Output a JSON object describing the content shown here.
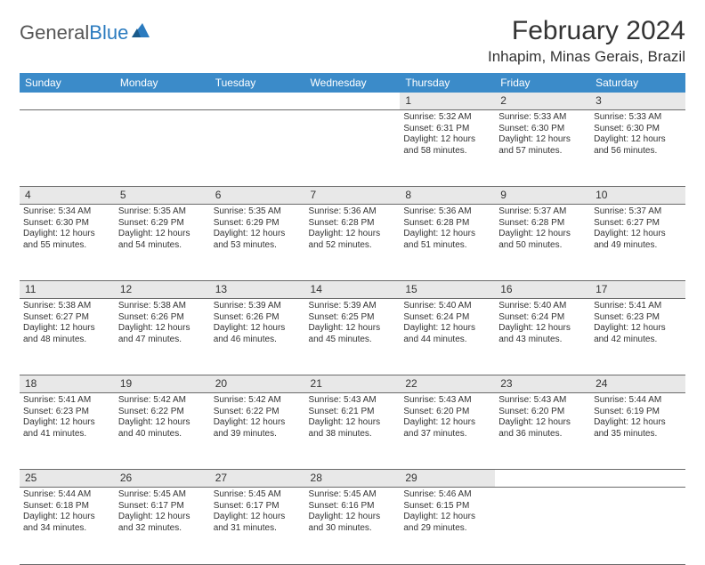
{
  "logo": {
    "text1": "General",
    "text2": "Blue"
  },
  "title": "February 2024",
  "location": "Inhapim, Minas Gerais, Brazil",
  "colors": {
    "header_bg": "#3b8bc9",
    "header_text": "#ffffff",
    "daynum_bg": "#e8e8e8",
    "border": "#6a6a6a",
    "text": "#333333",
    "logo_gray": "#555555",
    "logo_blue": "#2b7bbf",
    "page_bg": "#ffffff"
  },
  "day_headers": [
    "Sunday",
    "Monday",
    "Tuesday",
    "Wednesday",
    "Thursday",
    "Friday",
    "Saturday"
  ],
  "weeks": [
    [
      null,
      null,
      null,
      null,
      {
        "n": "1",
        "sr": "Sunrise: 5:32 AM",
        "ss": "Sunset: 6:31 PM",
        "dl": "Daylight: 12 hours and 58 minutes."
      },
      {
        "n": "2",
        "sr": "Sunrise: 5:33 AM",
        "ss": "Sunset: 6:30 PM",
        "dl": "Daylight: 12 hours and 57 minutes."
      },
      {
        "n": "3",
        "sr": "Sunrise: 5:33 AM",
        "ss": "Sunset: 6:30 PM",
        "dl": "Daylight: 12 hours and 56 minutes."
      }
    ],
    [
      {
        "n": "4",
        "sr": "Sunrise: 5:34 AM",
        "ss": "Sunset: 6:30 PM",
        "dl": "Daylight: 12 hours and 55 minutes."
      },
      {
        "n": "5",
        "sr": "Sunrise: 5:35 AM",
        "ss": "Sunset: 6:29 PM",
        "dl": "Daylight: 12 hours and 54 minutes."
      },
      {
        "n": "6",
        "sr": "Sunrise: 5:35 AM",
        "ss": "Sunset: 6:29 PM",
        "dl": "Daylight: 12 hours and 53 minutes."
      },
      {
        "n": "7",
        "sr": "Sunrise: 5:36 AM",
        "ss": "Sunset: 6:28 PM",
        "dl": "Daylight: 12 hours and 52 minutes."
      },
      {
        "n": "8",
        "sr": "Sunrise: 5:36 AM",
        "ss": "Sunset: 6:28 PM",
        "dl": "Daylight: 12 hours and 51 minutes."
      },
      {
        "n": "9",
        "sr": "Sunrise: 5:37 AM",
        "ss": "Sunset: 6:28 PM",
        "dl": "Daylight: 12 hours and 50 minutes."
      },
      {
        "n": "10",
        "sr": "Sunrise: 5:37 AM",
        "ss": "Sunset: 6:27 PM",
        "dl": "Daylight: 12 hours and 49 minutes."
      }
    ],
    [
      {
        "n": "11",
        "sr": "Sunrise: 5:38 AM",
        "ss": "Sunset: 6:27 PM",
        "dl": "Daylight: 12 hours and 48 minutes."
      },
      {
        "n": "12",
        "sr": "Sunrise: 5:38 AM",
        "ss": "Sunset: 6:26 PM",
        "dl": "Daylight: 12 hours and 47 minutes."
      },
      {
        "n": "13",
        "sr": "Sunrise: 5:39 AM",
        "ss": "Sunset: 6:26 PM",
        "dl": "Daylight: 12 hours and 46 minutes."
      },
      {
        "n": "14",
        "sr": "Sunrise: 5:39 AM",
        "ss": "Sunset: 6:25 PM",
        "dl": "Daylight: 12 hours and 45 minutes."
      },
      {
        "n": "15",
        "sr": "Sunrise: 5:40 AM",
        "ss": "Sunset: 6:24 PM",
        "dl": "Daylight: 12 hours and 44 minutes."
      },
      {
        "n": "16",
        "sr": "Sunrise: 5:40 AM",
        "ss": "Sunset: 6:24 PM",
        "dl": "Daylight: 12 hours and 43 minutes."
      },
      {
        "n": "17",
        "sr": "Sunrise: 5:41 AM",
        "ss": "Sunset: 6:23 PM",
        "dl": "Daylight: 12 hours and 42 minutes."
      }
    ],
    [
      {
        "n": "18",
        "sr": "Sunrise: 5:41 AM",
        "ss": "Sunset: 6:23 PM",
        "dl": "Daylight: 12 hours and 41 minutes."
      },
      {
        "n": "19",
        "sr": "Sunrise: 5:42 AM",
        "ss": "Sunset: 6:22 PM",
        "dl": "Daylight: 12 hours and 40 minutes."
      },
      {
        "n": "20",
        "sr": "Sunrise: 5:42 AM",
        "ss": "Sunset: 6:22 PM",
        "dl": "Daylight: 12 hours and 39 minutes."
      },
      {
        "n": "21",
        "sr": "Sunrise: 5:43 AM",
        "ss": "Sunset: 6:21 PM",
        "dl": "Daylight: 12 hours and 38 minutes."
      },
      {
        "n": "22",
        "sr": "Sunrise: 5:43 AM",
        "ss": "Sunset: 6:20 PM",
        "dl": "Daylight: 12 hours and 37 minutes."
      },
      {
        "n": "23",
        "sr": "Sunrise: 5:43 AM",
        "ss": "Sunset: 6:20 PM",
        "dl": "Daylight: 12 hours and 36 minutes."
      },
      {
        "n": "24",
        "sr": "Sunrise: 5:44 AM",
        "ss": "Sunset: 6:19 PM",
        "dl": "Daylight: 12 hours and 35 minutes."
      }
    ],
    [
      {
        "n": "25",
        "sr": "Sunrise: 5:44 AM",
        "ss": "Sunset: 6:18 PM",
        "dl": "Daylight: 12 hours and 34 minutes."
      },
      {
        "n": "26",
        "sr": "Sunrise: 5:45 AM",
        "ss": "Sunset: 6:17 PM",
        "dl": "Daylight: 12 hours and 32 minutes."
      },
      {
        "n": "27",
        "sr": "Sunrise: 5:45 AM",
        "ss": "Sunset: 6:17 PM",
        "dl": "Daylight: 12 hours and 31 minutes."
      },
      {
        "n": "28",
        "sr": "Sunrise: 5:45 AM",
        "ss": "Sunset: 6:16 PM",
        "dl": "Daylight: 12 hours and 30 minutes."
      },
      {
        "n": "29",
        "sr": "Sunrise: 5:46 AM",
        "ss": "Sunset: 6:15 PM",
        "dl": "Daylight: 12 hours and 29 minutes."
      },
      null,
      null
    ]
  ]
}
